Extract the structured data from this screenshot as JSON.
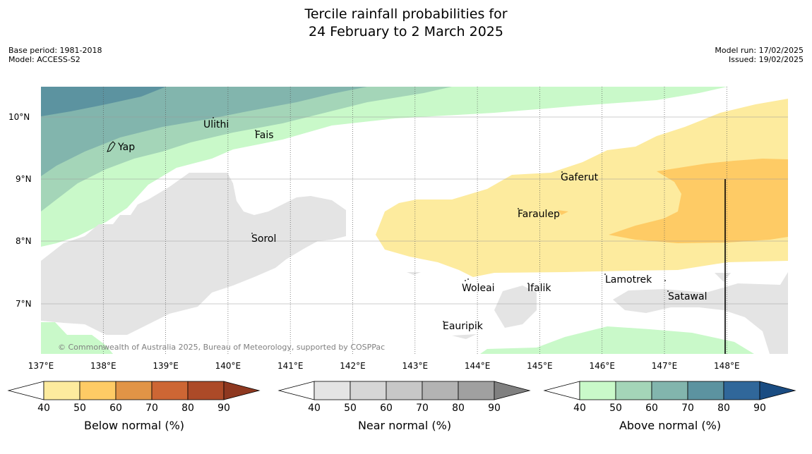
{
  "title": {
    "line1": "Tercile rainfall probabilities for",
    "line2": "24 February to 2 March 2025"
  },
  "meta": {
    "base_period": "Base period: 1981-2018",
    "model": "Model: ACCESS-S2",
    "model_run": "Model run: 17/02/2025",
    "issued": "Issued: 19/02/2025"
  },
  "map": {
    "lon_ticks": [
      "137°E",
      "138°E",
      "139°E",
      "140°E",
      "141°E",
      "142°E",
      "143°E",
      "144°E",
      "145°E",
      "146°E",
      "147°E",
      "148°E"
    ],
    "lat_ticks": [
      "10°N",
      "9°N",
      "8°N",
      "7°N"
    ],
    "places": [
      "Ulithi",
      "Fais",
      "Yap",
      "Gaferut",
      "Faraulep",
      "Sorol",
      "Lamotrek",
      "Woleai",
      "Ifalik",
      "Satawal",
      "Eauripik"
    ],
    "copyright": "© Commonwealth of Australia 2025, Bureau of Meteorology, supported by COSPPac",
    "colors": {
      "below": [
        "#fdeb9e",
        "#fecb65",
        "#e19446",
        "#cd6634",
        "#ac4a28",
        "#8e3820"
      ],
      "near": [
        "#e4e4e4",
        "#d6d6d6",
        "#c7c7c7",
        "#b3b3b3",
        "#a0a0a0",
        "#808080"
      ],
      "above": [
        "#c9f9c9",
        "#a4d5b8",
        "#82b5ad",
        "#5c93a0",
        "#30679a",
        "#1a4c82"
      ]
    }
  },
  "colorbars": [
    {
      "label": "Below normal (%)",
      "ticks": [
        "40",
        "50",
        "60",
        "70",
        "80",
        "90"
      ]
    },
    {
      "label": "Near normal (%)",
      "ticks": [
        "40",
        "50",
        "60",
        "70",
        "80",
        "90"
      ]
    },
    {
      "label": "Above normal (%)",
      "ticks": [
        "40",
        "50",
        "60",
        "70",
        "80",
        "90"
      ]
    }
  ]
}
